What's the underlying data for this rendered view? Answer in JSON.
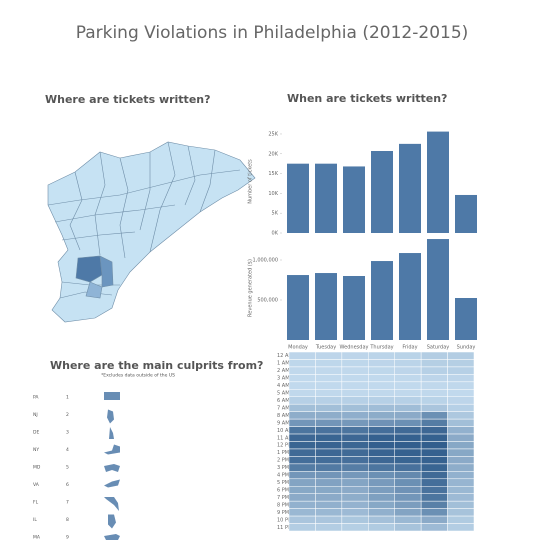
{
  "title": "Parking Violations in Philadelphia (2012-2015)",
  "map": {
    "title": "Where are tickets written?"
  },
  "when_title": "When are tickets written?",
  "culprits": {
    "title": "Where are the main culprits from?",
    "note": "*Excludes data outside of the US",
    "items": [
      {
        "state": "PA",
        "rank": 1
      },
      {
        "state": "NJ",
        "rank": 2
      },
      {
        "state": "DE",
        "rank": 3
      },
      {
        "state": "NY",
        "rank": 4
      },
      {
        "state": "MD",
        "rank": 5
      },
      {
        "state": "VA",
        "rank": 6
      },
      {
        "state": "FL",
        "rank": 7
      },
      {
        "state": "IL",
        "rank": 8
      },
      {
        "state": "MA",
        "rank": 9
      }
    ]
  },
  "chart_data": [
    {
      "type": "bar",
      "y_label": "Number of tickets",
      "values": [
        17500,
        17500,
        16800,
        20700,
        22500,
        25600,
        9600
      ],
      "color": "#4e79a7",
      "ylim": [
        0,
        26000
      ],
      "yticks": [
        {
          "value": 0,
          "label": "0K"
        },
        {
          "value": 5000,
          "label": "5K"
        },
        {
          "value": 10000,
          "label": "10K"
        },
        {
          "value": 15000,
          "label": "15K"
        },
        {
          "value": 20000,
          "label": "20K"
        },
        {
          "value": 25000,
          "label": "25K"
        }
      ]
    },
    {
      "type": "bar",
      "y_label": "Revenue generated ($)",
      "categories": [
        "Monday",
        "Tuesday",
        "Wednesday",
        "Thursday",
        "Friday",
        "Saturday",
        "Sunday"
      ],
      "values": [
        812000,
        837000,
        800000,
        987000,
        1087000,
        1262000,
        525000
      ],
      "color": "#4e79a7",
      "ylim": [
        0,
        1300000
      ],
      "yticks": [
        {
          "value": 500000,
          "label": "500,000"
        },
        {
          "value": 1000000,
          "label": "1,000,000"
        }
      ]
    },
    {
      "type": "heatmap",
      "y_categories": [
        "12 AM",
        "1 AM",
        "2 AM",
        "3 AM",
        "4 AM",
        "5 AM",
        "6 AM",
        "7 AM",
        "8 AM",
        "9 AM",
        "10 AM",
        "11 AM",
        "12 PM",
        "1 PM",
        "2 PM",
        "3 PM",
        "4 PM",
        "5 PM",
        "6 PM",
        "7 PM",
        "8 PM",
        "9 PM",
        "10 PM",
        "11 PM"
      ],
      "zlim": [
        0,
        100
      ],
      "colors": [
        "#c9e0f2",
        "#2d5a8a"
      ],
      "values": [
        [
          8,
          8,
          8,
          9,
          10,
          14,
          14
        ],
        [
          7,
          7,
          7,
          8,
          9,
          13,
          13
        ],
        [
          6,
          6,
          6,
          7,
          8,
          12,
          12
        ],
        [
          5,
          5,
          5,
          5,
          6,
          8,
          8
        ],
        [
          5,
          5,
          5,
          5,
          5,
          6,
          6
        ],
        [
          6,
          6,
          6,
          6,
          6,
          6,
          5
        ],
        [
          12,
          12,
          12,
          12,
          12,
          10,
          8
        ],
        [
          25,
          25,
          25,
          26,
          26,
          20,
          12
        ],
        [
          38,
          38,
          37,
          39,
          40,
          60,
          18
        ],
        [
          55,
          56,
          54,
          58,
          60,
          75,
          25
        ],
        [
          80,
          82,
          80,
          85,
          88,
          90,
          35
        ],
        [
          90,
          92,
          90,
          95,
          95,
          95,
          40
        ],
        [
          92,
          93,
          91,
          96,
          97,
          97,
          42
        ],
        [
          88,
          90,
          88,
          93,
          95,
          95,
          42
        ],
        [
          85,
          86,
          84,
          90,
          92,
          94,
          40
        ],
        [
          75,
          76,
          74,
          80,
          83,
          92,
          38
        ],
        [
          55,
          56,
          54,
          60,
          65,
          88,
          35
        ],
        [
          45,
          46,
          44,
          52,
          60,
          85,
          32
        ],
        [
          42,
          42,
          40,
          50,
          58,
          82,
          30
        ],
        [
          40,
          40,
          38,
          48,
          55,
          80,
          28
        ],
        [
          35,
          36,
          34,
          42,
          50,
          72,
          25
        ],
        [
          30,
          30,
          28,
          36,
          45,
          60,
          22
        ],
        [
          20,
          20,
          19,
          24,
          30,
          40,
          16
        ],
        [
          14,
          14,
          13,
          16,
          22,
          28,
          14
        ]
      ]
    }
  ]
}
